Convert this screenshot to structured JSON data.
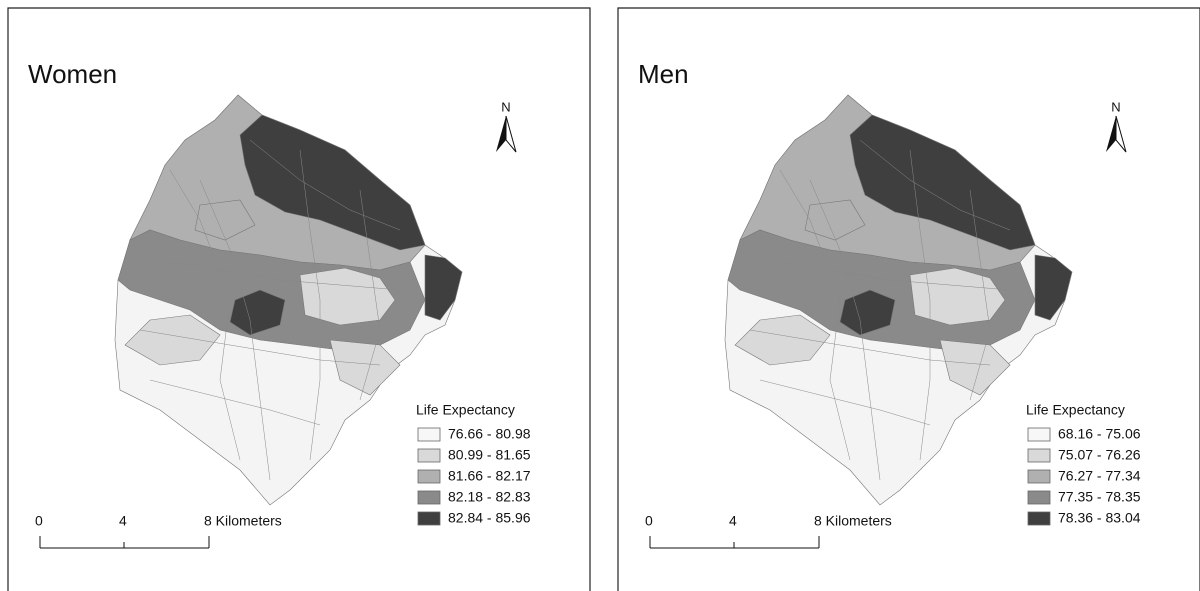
{
  "panels": [
    {
      "title": "Women",
      "north": "N",
      "legend_title": "Life Expectancy",
      "legend": [
        {
          "label": "76.66 - 80.98",
          "color": "#f7f7f7"
        },
        {
          "label": "80.99 - 81.65",
          "color": "#d9d9d9"
        },
        {
          "label": "81.66 - 82.17",
          "color": "#b0b0b0"
        },
        {
          "label": "82.18 - 82.83",
          "color": "#8a8a8a"
        },
        {
          "label": "82.84 - 85.96",
          "color": "#3f3f3f"
        }
      ],
      "scale_labels": [
        "0",
        "4",
        "8 Kilometers"
      ]
    },
    {
      "title": "Men",
      "north": "N",
      "legend_title": "Life Expectancy",
      "legend": [
        {
          "label": "68.16 - 75.06",
          "color": "#f7f7f7"
        },
        {
          "label": "75.07 - 76.26",
          "color": "#d9d9d9"
        },
        {
          "label": "76.27 - 77.34",
          "color": "#b0b0b0"
        },
        {
          "label": "77.35 - 78.35",
          "color": "#8a8a8a"
        },
        {
          "label": "78.36 - 83.04",
          "color": "#3f3f3f"
        }
      ],
      "scale_labels": [
        "0",
        "4",
        "8 Kilometers"
      ]
    }
  ]
}
